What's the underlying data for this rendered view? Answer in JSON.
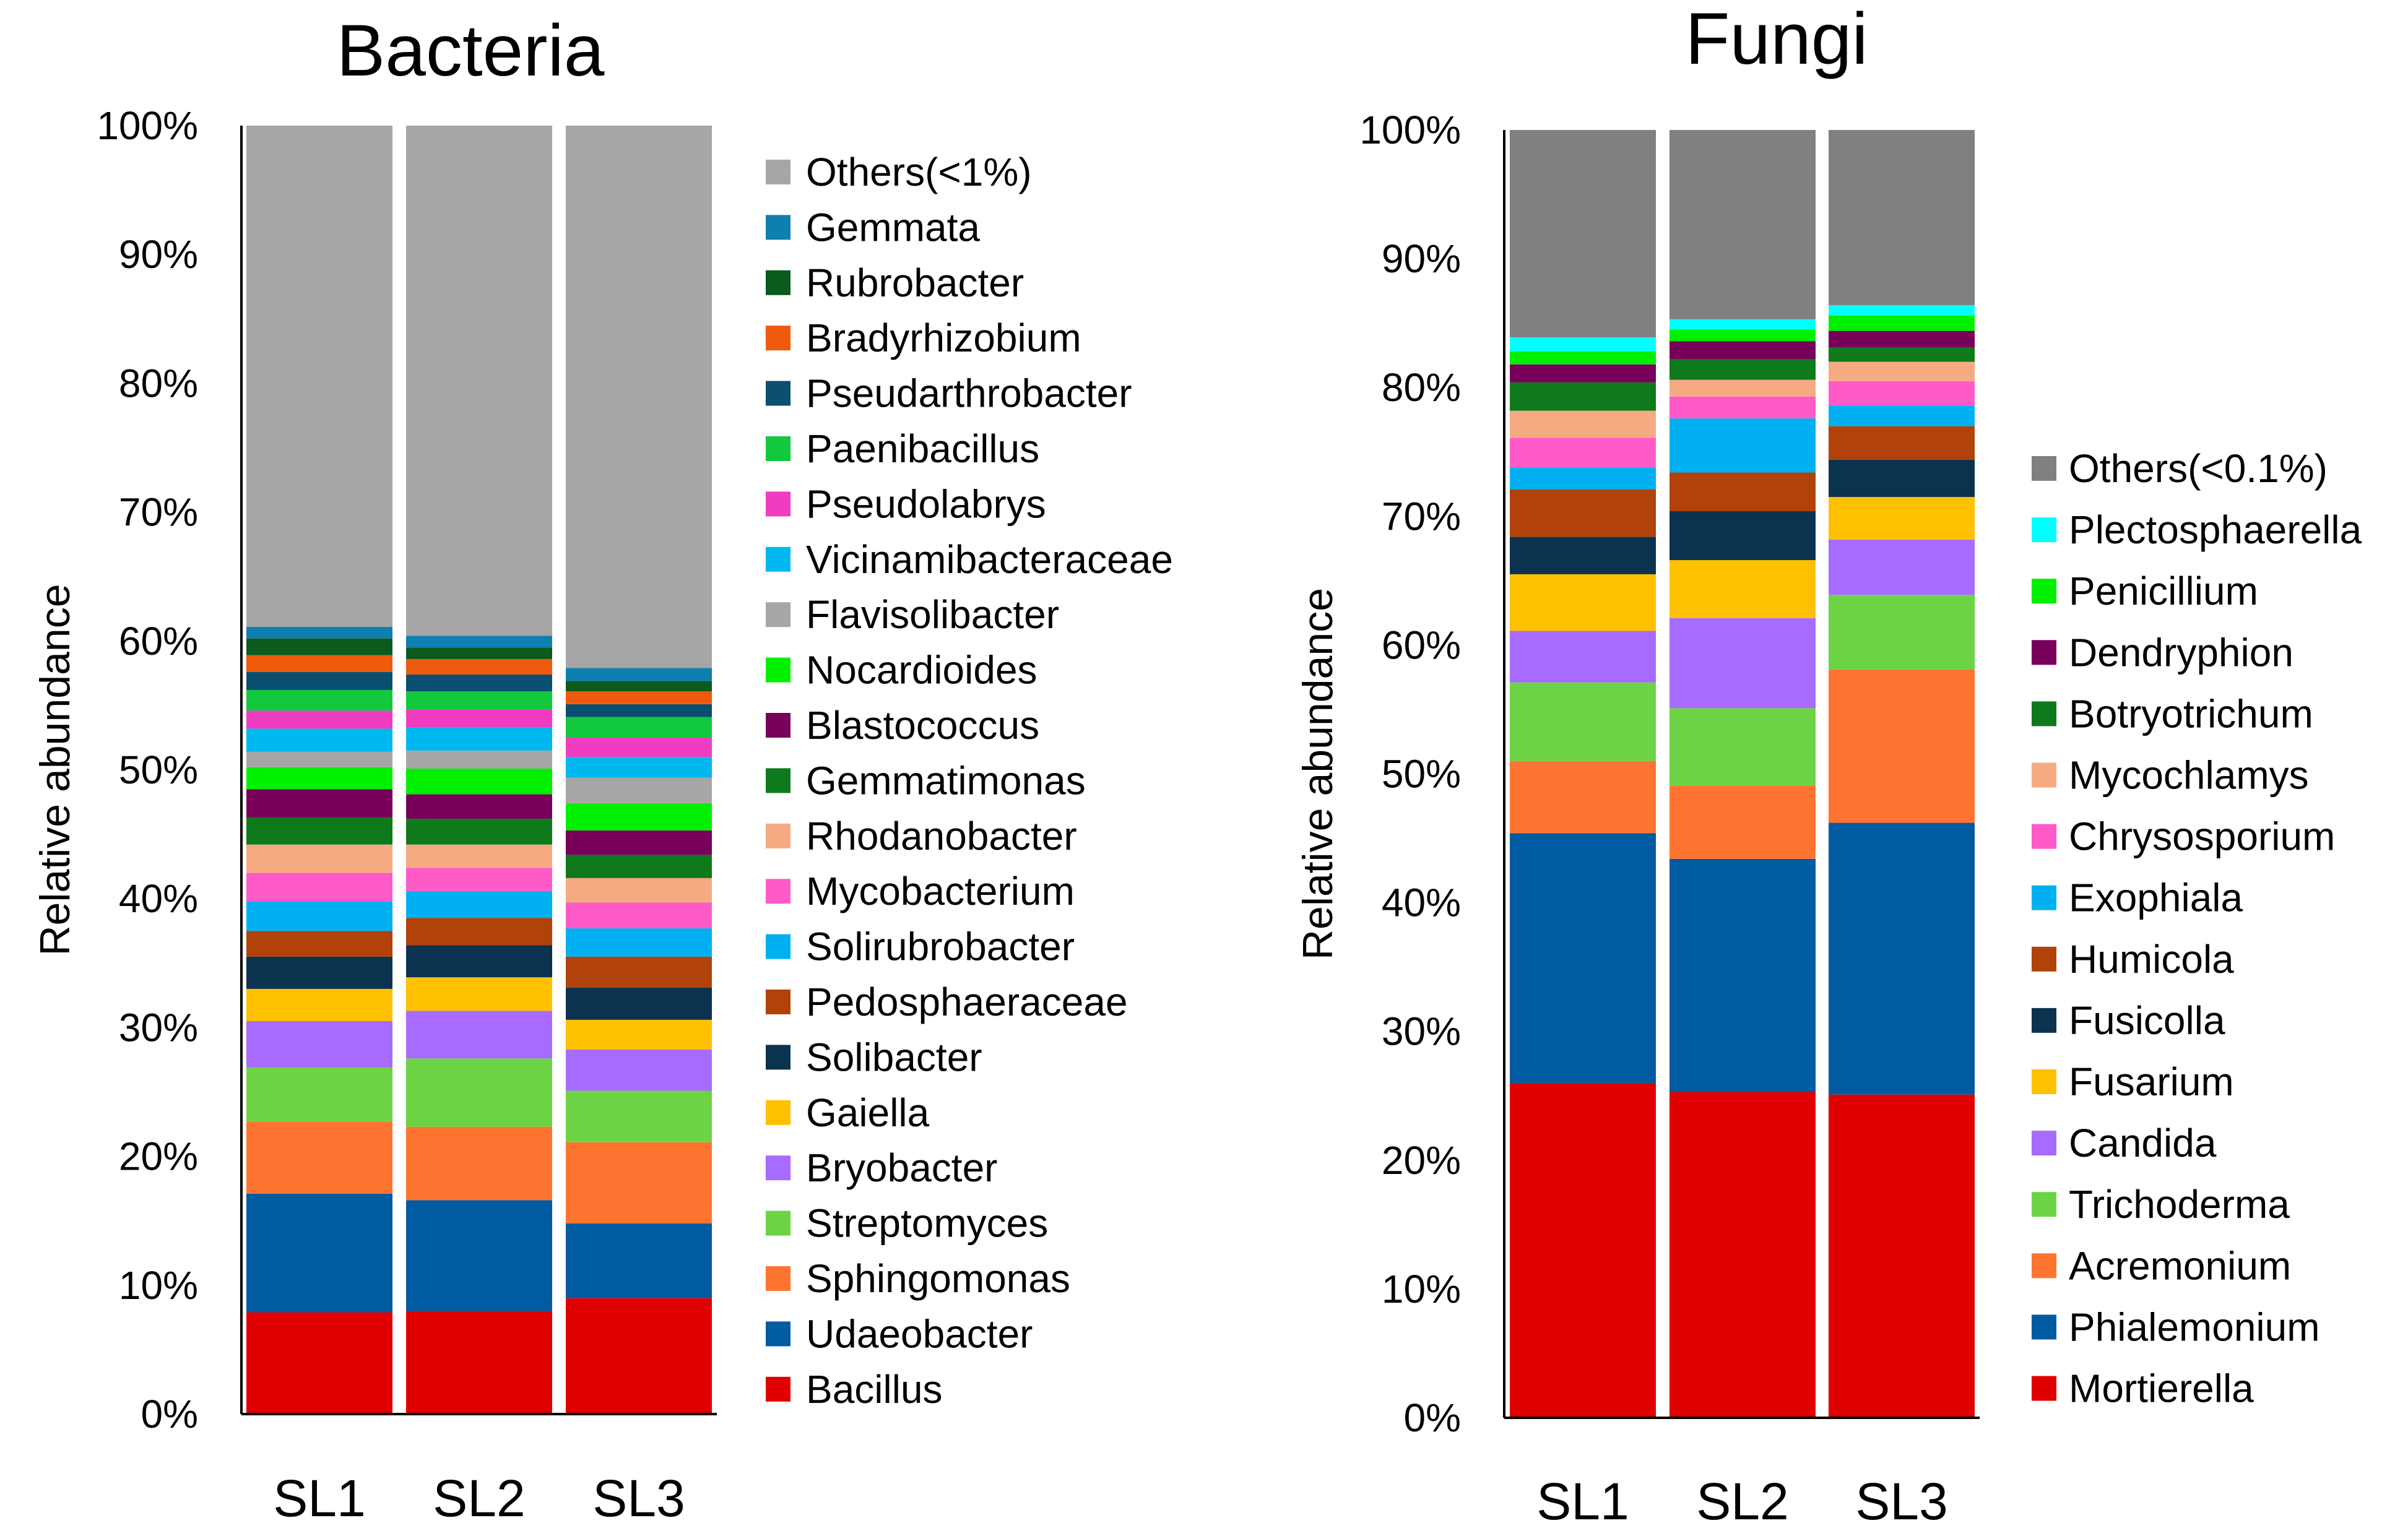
{
  "chart_data": [
    {
      "type": "bar",
      "stacked": true,
      "title": "Bacteria",
      "xlabel": "",
      "ylabel": "Relative abundance",
      "ylim": [
        0,
        100
      ],
      "y_ticks": [
        "0%",
        "10%",
        "20%",
        "30%",
        "40%",
        "50%",
        "60%",
        "70%",
        "80%",
        "90%",
        "100%"
      ],
      "categories": [
        "SL1",
        "SL2",
        "SL3"
      ],
      "series": [
        {
          "name": "Bacillus",
          "color": "#E00000",
          "values": [
            7.9,
            8.0,
            9.0
          ]
        },
        {
          "name": "Udaeobacter",
          "color": "#005BA1",
          "values": [
            9.2,
            8.6,
            5.8
          ]
        },
        {
          "name": "Sphingomonas",
          "color": "#FF7430",
          "values": [
            5.6,
            5.7,
            6.3
          ]
        },
        {
          "name": "Streptomyces",
          "color": "#6CD444",
          "values": [
            4.2,
            5.3,
            4.0
          ]
        },
        {
          "name": "Bryobacter",
          "color": "#A86BFF",
          "values": [
            3.6,
            3.7,
            3.2
          ]
        },
        {
          "name": "Gaiella",
          "color": "#FFC000",
          "values": [
            2.5,
            2.6,
            2.3
          ]
        },
        {
          "name": "Solibacter",
          "color": "#0B3350",
          "values": [
            2.5,
            2.5,
            2.5
          ]
        },
        {
          "name": "Pedosphaeraceae",
          "color": "#B0420A",
          "values": [
            2.0,
            2.1,
            2.4
          ]
        },
        {
          "name": "Solirubrobacter",
          "color": "#00B0F0",
          "values": [
            2.3,
            2.1,
            2.2
          ]
        },
        {
          "name": "Mycobacterium",
          "color": "#FF5BC8",
          "values": [
            2.2,
            1.8,
            2.0
          ]
        },
        {
          "name": "Rhodanobacter",
          "color": "#F6AA82",
          "values": [
            2.2,
            1.8,
            1.9
          ]
        },
        {
          "name": "Gemmatimonas",
          "color": "#0E7A1C",
          "values": [
            2.1,
            2.0,
            1.8
          ]
        },
        {
          "name": "Blastococcus",
          "color": "#78005A",
          "values": [
            2.2,
            1.9,
            1.9
          ]
        },
        {
          "name": "Nocardioides",
          "color": "#00F000",
          "values": [
            1.7,
            2.0,
            2.1
          ]
        },
        {
          "name": "Flavisolibacter",
          "color": "#A6A6A6",
          "values": [
            1.2,
            1.4,
            2.0
          ]
        },
        {
          "name": "Vicinamibacteraceae",
          "color": "#00B8F0",
          "values": [
            1.8,
            1.8,
            1.6
          ]
        },
        {
          "name": "Pseudolabrys",
          "color": "#F03CC0",
          "values": [
            1.4,
            1.4,
            1.5
          ]
        },
        {
          "name": "Paenibacillus",
          "color": "#12C83C",
          "values": [
            1.6,
            1.4,
            1.6
          ]
        },
        {
          "name": "Pseudarthrobacter",
          "color": "#0A4E70",
          "values": [
            1.4,
            1.3,
            1.0
          ]
        },
        {
          "name": "Bradyrhizobium",
          "color": "#F05A0C",
          "values": [
            1.3,
            1.2,
            1.0
          ]
        },
        {
          "name": "Rubrobacter",
          "color": "#0B5A1E",
          "values": [
            1.3,
            0.9,
            0.8
          ]
        },
        {
          "name": "Gemmata",
          "color": "#0F7FB0",
          "values": [
            0.9,
            0.9,
            1.0
          ]
        },
        {
          "name": "Others(<1%)",
          "color": "#A6A6A6",
          "values": [
            38.9,
            39.6,
            42.1
          ]
        }
      ]
    },
    {
      "type": "bar",
      "stacked": true,
      "title": "Fungi",
      "xlabel": "",
      "ylabel": "Relative abundance",
      "ylim": [
        0,
        100
      ],
      "y_ticks": [
        "0%",
        "10%",
        "20%",
        "30%",
        "40%",
        "50%",
        "60%",
        "70%",
        "80%",
        "90%",
        "100%"
      ],
      "categories": [
        "SL1",
        "SL2",
        "SL3"
      ],
      "series": [
        {
          "name": "Mortierella",
          "color": "#E00000",
          "values": [
            26.0,
            25.3,
            25.1
          ]
        },
        {
          "name": "Phialemonium",
          "color": "#005BA1",
          "values": [
            19.4,
            18.1,
            21.1
          ]
        },
        {
          "name": "Acremonium",
          "color": "#FF7430",
          "values": [
            5.6,
            5.7,
            11.9
          ]
        },
        {
          "name": "Trichoderma",
          "color": "#6CD444",
          "values": [
            6.1,
            6.0,
            5.8
          ]
        },
        {
          "name": "Candida",
          "color": "#A86BFF",
          "values": [
            4.0,
            7.0,
            4.3
          ]
        },
        {
          "name": "Fusarium",
          "color": "#FFC000",
          "values": [
            4.4,
            4.5,
            3.3
          ]
        },
        {
          "name": "Fusicolla",
          "color": "#0B3350",
          "values": [
            2.9,
            3.8,
            2.9
          ]
        },
        {
          "name": "Humicola",
          "color": "#B0420A",
          "values": [
            3.7,
            3.0,
            2.6
          ]
        },
        {
          "name": "Exophiala",
          "color": "#00B0F0",
          "values": [
            1.7,
            4.2,
            1.6
          ]
        },
        {
          "name": "Chrysosporium",
          "color": "#FF5BC8",
          "values": [
            2.3,
            1.7,
            1.9
          ]
        },
        {
          "name": "Mycochlamys",
          "color": "#F6AA82",
          "values": [
            2.1,
            1.3,
            1.5
          ]
        },
        {
          "name": "Botryotrichum",
          "color": "#0E7A1C",
          "values": [
            2.2,
            1.6,
            1.1
          ]
        },
        {
          "name": "Dendryphion",
          "color": "#78005A",
          "values": [
            1.4,
            1.4,
            1.3
          ]
        },
        {
          "name": "Penicillium",
          "color": "#00F000",
          "values": [
            1.0,
            0.9,
            1.2
          ]
        },
        {
          "name": "Plectosphaerella",
          "color": "#00FFFF",
          "values": [
            1.1,
            0.8,
            0.8
          ]
        },
        {
          "name": "Others(<0.1%)",
          "color": "#808080",
          "values": [
            16.1,
            14.7,
            13.6
          ]
        }
      ]
    }
  ]
}
